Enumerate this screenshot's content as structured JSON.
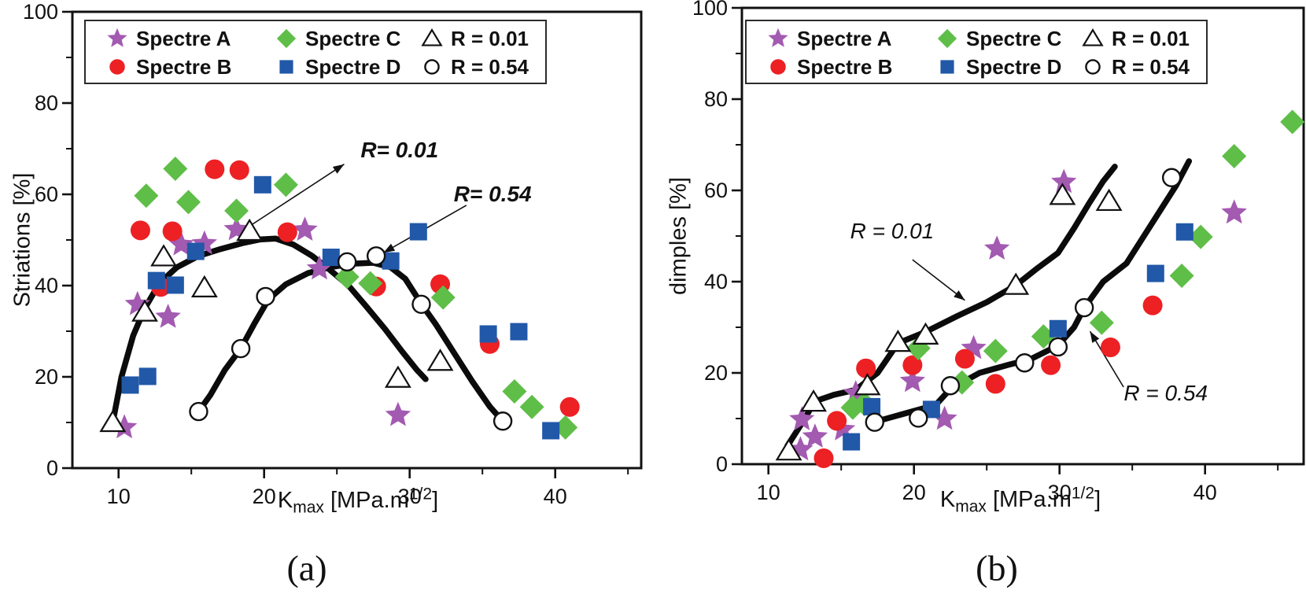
{
  "chart_data": {
    "type": "scatter",
    "panels": [
      {
        "id": "a",
        "panel_label": "(a)",
        "ylabel": "Striations  [%]",
        "xlabel": {
          "base": "K",
          "sub": "max",
          "unit": "  [MPa.m",
          "sup": "1/2",
          "close": "]"
        },
        "xlim": [
          6.8,
          45.9
        ],
        "ylim": [
          0,
          100
        ],
        "axes": {
          "xticks_major": [
            10,
            20,
            30,
            40
          ],
          "xticks_minor": [
            15,
            25,
            35,
            45
          ],
          "yticks_major": [
            0,
            20,
            40,
            60,
            80,
            100
          ],
          "yticks_minor": [
            10,
            30,
            50,
            70,
            90
          ]
        },
        "series": [
          {
            "name": "Spectre A",
            "marker": "star",
            "color": "#a35ab1",
            "points": [
              [
                10.4,
                8.9
              ],
              [
                11.3,
                35.9
              ],
              [
                13.4,
                33.1
              ],
              [
                14.3,
                49.0
              ],
              [
                15.9,
                49.2
              ],
              [
                18.1,
                52.3
              ],
              [
                22.8,
                52.2
              ],
              [
                23.8,
                43.7
              ],
              [
                29.2,
                11.6
              ]
            ]
          },
          {
            "name": "Spectre B",
            "marker": "circle",
            "color": "#ed2024",
            "points": [
              [
                11.5,
                52.1
              ],
              [
                12.9,
                39.7
              ],
              [
                13.7,
                51.9
              ],
              [
                16.6,
                65.5
              ],
              [
                18.3,
                65.3
              ],
              [
                21.6,
                51.7
              ],
              [
                27.7,
                39.8
              ],
              [
                32.1,
                40.3
              ],
              [
                35.5,
                27.2
              ],
              [
                41.0,
                13.4
              ]
            ]
          },
          {
            "name": "Spectre C",
            "marker": "diamond",
            "color": "#5fbe48",
            "points": [
              [
                11.9,
                59.7
              ],
              [
                13.9,
                65.6
              ],
              [
                14.8,
                58.3
              ],
              [
                18.1,
                56.4
              ],
              [
                21.5,
                62.1
              ],
              [
                25.7,
                41.9
              ],
              [
                27.3,
                40.5
              ],
              [
                32.3,
                37.4
              ],
              [
                37.2,
                16.8
              ],
              [
                38.4,
                13.4
              ],
              [
                40.7,
                8.9
              ]
            ]
          },
          {
            "name": "Spectre D",
            "marker": "square",
            "color": "#2158a8",
            "points": [
              [
                10.8,
                18.2
              ],
              [
                12.0,
                20.1
              ],
              [
                12.6,
                41.1
              ],
              [
                13.9,
                40.1
              ],
              [
                15.3,
                47.5
              ],
              [
                19.9,
                62.1
              ],
              [
                24.6,
                46.2
              ],
              [
                28.7,
                45.4
              ],
              [
                30.6,
                51.8
              ],
              [
                35.4,
                29.4
              ],
              [
                37.5,
                29.9
              ],
              [
                39.7,
                8.2
              ]
            ]
          },
          {
            "name": "R = 0.01",
            "marker": "triangle-open",
            "color": "#111111",
            "points": [
              [
                9.6,
                10.0
              ],
              [
                11.8,
                34.2
              ],
              [
                13.1,
                46.3
              ],
              [
                15.9,
                39.5
              ],
              [
                19.0,
                51.9
              ],
              [
                29.2,
                19.7
              ],
              [
                32.1,
                23.4
              ]
            ]
          },
          {
            "name": "R = 0.54",
            "marker": "circle-open",
            "color": "#111111",
            "points": [
              [
                15.5,
                12.4
              ],
              [
                18.4,
                26.2
              ],
              [
                20.1,
                37.6
              ],
              [
                25.7,
                45.2
              ],
              [
                27.7,
                46.5
              ],
              [
                30.8,
                35.9
              ],
              [
                36.4,
                10.3
              ]
            ]
          }
        ],
        "curves": [
          {
            "name": "R = 0.01 fit",
            "points": [
              [
                9.6,
                10
              ],
              [
                10.2,
                20
              ],
              [
                11.0,
                29
              ],
              [
                11.8,
                35
              ],
              [
                12.8,
                40.5
              ],
              [
                14.0,
                44
              ],
              [
                15.5,
                46.5
              ],
              [
                17.0,
                48
              ],
              [
                18.5,
                49.3
              ],
              [
                19.7,
                50.1
              ],
              [
                20.8,
                50.3
              ],
              [
                22.0,
                49
              ],
              [
                23.3,
                46.5
              ],
              [
                24.5,
                43.5
              ],
              [
                25.8,
                40
              ],
              [
                27.0,
                35.5
              ],
              [
                28.3,
                30.5
              ],
              [
                29.5,
                25.5
              ],
              [
                30.5,
                21.5
              ],
              [
                31.1,
                19.5
              ]
            ]
          },
          {
            "name": "R = 0.54 fit",
            "points": [
              [
                15.5,
                12.4
              ],
              [
                16.3,
                16
              ],
              [
                17.3,
                21.5
              ],
              [
                18.4,
                26.2
              ],
              [
                19.3,
                31.5
              ],
              [
                20.3,
                37
              ],
              [
                21.5,
                40.3
              ],
              [
                23.0,
                42.7
              ],
              [
                24.5,
                44
              ],
              [
                26.0,
                44.8
              ],
              [
                27.5,
                45
              ],
              [
                28.7,
                44
              ],
              [
                29.7,
                41.5
              ],
              [
                30.8,
                36
              ],
              [
                31.8,
                31.5
              ],
              [
                33.0,
                25.5
              ],
              [
                34.3,
                19
              ],
              [
                35.5,
                13.5
              ],
              [
                36.4,
                10.3
              ]
            ]
          }
        ],
        "annotations": [
          {
            "text": "R= 0.01",
            "x": 29.3,
            "y": 69.7,
            "bold": true,
            "arrow": {
              "from": [
                18.6,
                52.2
              ],
              "to": [
                25.5,
                66.6
              ]
            }
          },
          {
            "text": "R= 0.54",
            "x": 35.7,
            "y": 60.0,
            "bold": true,
            "arrow": {
              "from": [
                33.9,
                57.6
              ],
              "to": [
                28.2,
                47.2
              ]
            }
          }
        ]
      },
      {
        "id": "b",
        "panel_label": "(b)",
        "ylabel": "dimples  [%]",
        "xlabel": {
          "base": "K",
          "sub": "max",
          "unit": "  [MPa.m",
          "sup": "1/2",
          "close": "]"
        },
        "xlim": [
          8.2,
          46.8
        ],
        "ylim": [
          0,
          100
        ],
        "axes": {
          "xticks_major": [
            10,
            20,
            30,
            40
          ],
          "xticks_minor": [
            15,
            25,
            35,
            45
          ],
          "yticks_major": [
            0,
            20,
            40,
            60,
            80,
            100
          ],
          "yticks_minor": [
            10,
            30,
            50,
            70,
            90
          ]
        },
        "series": [
          {
            "name": "Spectre A",
            "marker": "star",
            "color": "#a35ab1",
            "points": [
              [
                12.2,
                3.2
              ],
              [
                12.3,
                9.8
              ],
              [
                13.2,
                6.0
              ],
              [
                15.1,
                7.6
              ],
              [
                16.0,
                15.5
              ],
              [
                19.9,
                18.2
              ],
              [
                22.1,
                9.9
              ],
              [
                24.1,
                25.4
              ],
              [
                25.7,
                47.2
              ],
              [
                30.3,
                61.8
              ],
              [
                42.0,
                55.1
              ]
            ]
          },
          {
            "name": "Spectre B",
            "marker": "circle",
            "color": "#ed2024",
            "points": [
              [
                13.8,
                1.3
              ],
              [
                14.7,
                9.5
              ],
              [
                16.7,
                21.0
              ],
              [
                19.9,
                21.7
              ],
              [
                23.5,
                23.1
              ],
              [
                25.6,
                17.6
              ],
              [
                29.4,
                21.7
              ],
              [
                33.5,
                25.6
              ],
              [
                36.4,
                34.8
              ]
            ]
          },
          {
            "name": "Spectre C",
            "marker": "diamond",
            "color": "#5fbe48",
            "points": [
              [
                15.8,
                12.4
              ],
              [
                16.6,
                13.2
              ],
              [
                20.3,
                25.4
              ],
              [
                23.3,
                17.9
              ],
              [
                25.6,
                24.8
              ],
              [
                28.9,
                28.0
              ],
              [
                32.9,
                31.0
              ],
              [
                38.4,
                41.3
              ],
              [
                39.7,
                49.8
              ],
              [
                42.0,
                67.5
              ],
              [
                46.0,
                75.0
              ]
            ]
          },
          {
            "name": "Spectre D",
            "marker": "square",
            "color": "#2158a8",
            "points": [
              [
                15.7,
                4.9
              ],
              [
                17.1,
                12.6
              ],
              [
                21.2,
                12.0
              ],
              [
                29.9,
                29.7
              ],
              [
                36.6,
                41.8
              ],
              [
                38.6,
                50.9
              ]
            ]
          },
          {
            "name": "R = 0.01",
            "marker": "triangle-open",
            "color": "#111111",
            "points": [
              [
                11.4,
                2.9
              ],
              [
                13.1,
                13.6
              ],
              [
                16.8,
                17.2
              ],
              [
                18.9,
                26.7
              ],
              [
                20.8,
                28.3
              ],
              [
                27.0,
                39.2
              ],
              [
                30.2,
                58.9
              ],
              [
                33.4,
                57.6
              ]
            ]
          },
          {
            "name": "R = 0.54",
            "marker": "circle-open",
            "color": "#111111",
            "points": [
              [
                17.3,
                9.2
              ],
              [
                20.3,
                10.1
              ],
              [
                22.5,
                17.2
              ],
              [
                27.6,
                22.2
              ],
              [
                29.9,
                25.7
              ],
              [
                31.7,
                34.3
              ],
              [
                37.7,
                62.8
              ]
            ]
          }
        ],
        "curves": [
          {
            "name": "R = 0.01 fit",
            "points": [
              [
                11.3,
                4
              ],
              [
                12.3,
                9
              ],
              [
                13.2,
                13.8
              ],
              [
                14.5,
                15.2
              ],
              [
                16.0,
                16.3
              ],
              [
                17.5,
                20
              ],
              [
                18.9,
                26.5
              ],
              [
                20.8,
                29
              ],
              [
                23.0,
                32.5
              ],
              [
                25.0,
                35.5
              ],
              [
                27.0,
                39.2
              ],
              [
                28.5,
                43
              ],
              [
                29.9,
                46.3
              ],
              [
                31.0,
                51.7
              ],
              [
                32.0,
                57
              ],
              [
                33.0,
                62
              ],
              [
                33.8,
                65.2
              ]
            ]
          },
          {
            "name": "R = 0.54 fit",
            "points": [
              [
                17.9,
                9.8
              ],
              [
                21.5,
                13
              ],
              [
                22.5,
                16.5
              ],
              [
                24.5,
                20
              ],
              [
                26.5,
                21.8
              ],
              [
                28.0,
                23
              ],
              [
                29.9,
                26
              ],
              [
                31.0,
                30
              ],
              [
                31.7,
                34.3
              ],
              [
                33.0,
                40
              ],
              [
                34.6,
                44
              ],
              [
                35.8,
                50
              ],
              [
                37.0,
                56
              ],
              [
                38.0,
                61
              ],
              [
                38.9,
                66.4
              ]
            ]
          }
        ],
        "annotations": [
          {
            "text": "R = 0.01",
            "x": 18.5,
            "y": 51.0,
            "bold": false,
            "arrow": {
              "from": [
                19.9,
                44.8
              ],
              "to": [
                23.5,
                35.9
              ]
            }
          },
          {
            "text": "R = 0.54",
            "x": 37.3,
            "y": 15.5,
            "bold": false,
            "arrow": {
              "from": [
                34.4,
                16.9
              ],
              "to": [
                32.1,
                29.1
              ]
            }
          }
        ]
      }
    ],
    "legend": {
      "items": [
        {
          "label": "Spectre A",
          "marker": "star",
          "color": "#a35ab1"
        },
        {
          "label": "Spectre B",
          "marker": "circle",
          "color": "#ed2024"
        },
        {
          "label": "Spectre C",
          "marker": "diamond",
          "color": "#5fbe48"
        },
        {
          "label": "Spectre D",
          "marker": "square",
          "color": "#2158a8"
        },
        {
          "label": "R = 0.01",
          "marker": "triangle-open",
          "color": "#111111"
        },
        {
          "label": "R = 0.54",
          "marker": "circle-open",
          "color": "#111111"
        }
      ]
    }
  }
}
